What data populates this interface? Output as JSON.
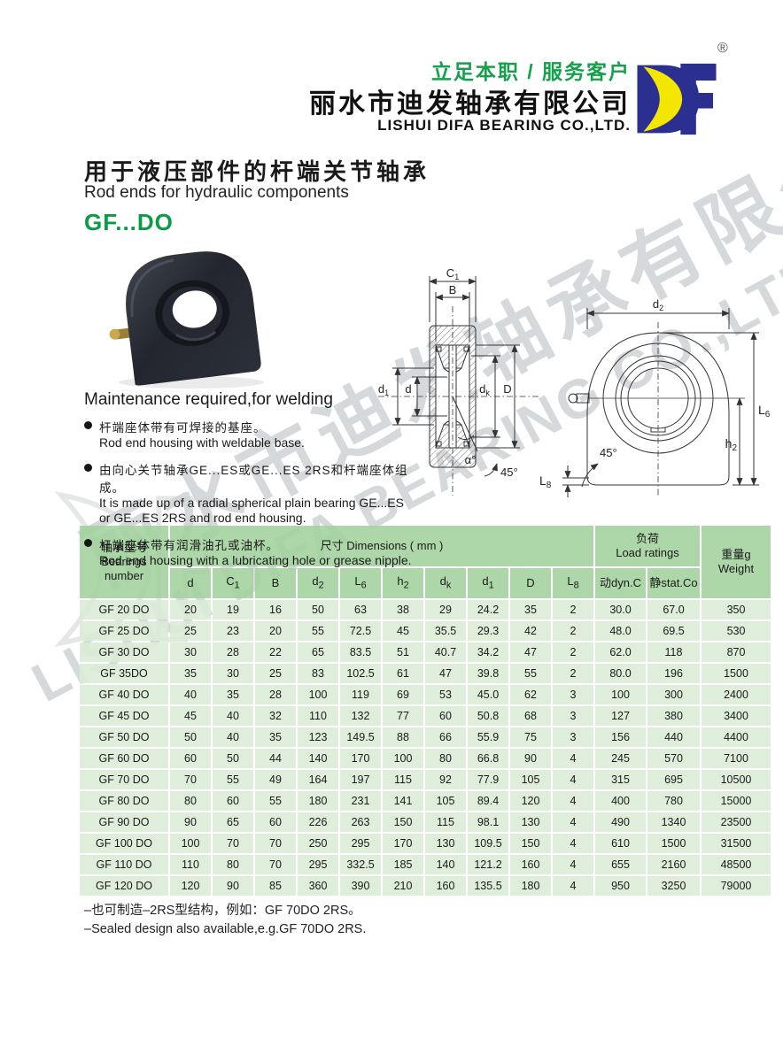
{
  "header": {
    "slogan": "立足本职 / 服务客户",
    "company_cn": "丽水市迪发轴承有限公司",
    "company_en": "LISHUI DIFA BEARING CO.,LTD.",
    "registered": "®",
    "logo_icon": "df-crescent-logo"
  },
  "title": {
    "cn": "用于液压部件的杆端关节轴承",
    "en": "Rod ends for hydraulic components",
    "model": "GF...DO"
  },
  "maintenance": {
    "heading": "Maintenance required,for welding",
    "bullets": [
      {
        "cn": "杆端座体带有可焊接的基座。",
        "en": "Rod end housing with weldable base."
      },
      {
        "cn": "由向心关节轴承GE...ES或GE...ES 2RS和杆端座体组成。",
        "en": "It is made up of a radial spherical plain bearing GE...ES or GE...ES 2RS and rod end housing."
      },
      {
        "cn": "杆端座体带有润滑油孔或油杯。",
        "en": "Rod end housing with a lubricating hole or grease nipple."
      }
    ]
  },
  "drawings": {
    "labels": {
      "c1": {
        "t": "C",
        "s": "1"
      },
      "b": {
        "t": "B",
        "s": ""
      },
      "d1": {
        "t": "d",
        "s": "1"
      },
      "d": {
        "t": "d",
        "s": ""
      },
      "dk": {
        "t": "d",
        "s": "k"
      },
      "D": {
        "t": "D",
        "s": ""
      },
      "alpha": {
        "t": "α°",
        "s": ""
      },
      "angle45_section": {
        "t": "45°",
        "s": ""
      },
      "d2": {
        "t": "d",
        "s": "2"
      },
      "l6": {
        "t": "L",
        "s": "6"
      },
      "h2": {
        "t": "h",
        "s": "2"
      },
      "angle45_front": {
        "t": "45°",
        "s": ""
      },
      "l8": {
        "t": "L",
        "s": "8"
      }
    }
  },
  "table": {
    "header": {
      "bearings_cn": "轴承型号",
      "bearings_en1": "Bearings",
      "bearings_en2": "number",
      "dimensions": "尺寸 Dimensions ( mm )",
      "load_cn": "负荷",
      "load_en": "Load ratings",
      "weight_line1": "重量g",
      "weight_line2": "Weight"
    },
    "sub_columns": [
      {
        "t": "d",
        "s": ""
      },
      {
        "t": "C",
        "s": "1"
      },
      {
        "t": "B",
        "s": ""
      },
      {
        "t": "d",
        "s": "2"
      },
      {
        "t": "L",
        "s": "6"
      },
      {
        "t": "h",
        "s": "2"
      },
      {
        "t": "d",
        "s": "k"
      },
      {
        "t": "d",
        "s": "1"
      },
      {
        "t": "D",
        "s": ""
      },
      {
        "t": "L",
        "s": "8"
      },
      {
        "t": "动dyn.C",
        "s": ""
      },
      {
        "t": "静stat.Co",
        "s": ""
      }
    ],
    "rows": [
      {
        "model": "GF 20 DO",
        "values": [
          "20",
          "19",
          "16",
          "50",
          "63",
          "38",
          "29",
          "24.2",
          "35",
          "2",
          "30.0",
          "67.0",
          "350"
        ]
      },
      {
        "model": "GF 25 DO",
        "values": [
          "25",
          "23",
          "20",
          "55",
          "72.5",
          "45",
          "35.5",
          "29.3",
          "42",
          "2",
          "48.0",
          "69.5",
          "530"
        ]
      },
      {
        "model": "GF 30 DO",
        "values": [
          "30",
          "28",
          "22",
          "65",
          "83.5",
          "51",
          "40.7",
          "34.2",
          "47",
          "2",
          "62.0",
          "118",
          "870"
        ]
      },
      {
        "model": "GF 35DO",
        "values": [
          "35",
          "30",
          "25",
          "83",
          "102.5",
          "61",
          "47",
          "39.8",
          "55",
          "2",
          "80.0",
          "196",
          "1500"
        ]
      },
      {
        "model": "GF 40 DO",
        "values": [
          "40",
          "35",
          "28",
          "100",
          "119",
          "69",
          "53",
          "45.0",
          "62",
          "3",
          "100",
          "300",
          "2400"
        ]
      },
      {
        "model": "GF 45 DO",
        "values": [
          "45",
          "40",
          "32",
          "110",
          "132",
          "77",
          "60",
          "50.8",
          "68",
          "3",
          "127",
          "380",
          "3400"
        ]
      },
      {
        "model": "GF 50 DO",
        "values": [
          "50",
          "40",
          "35",
          "123",
          "149.5",
          "88",
          "66",
          "55.9",
          "75",
          "3",
          "156",
          "440",
          "4400"
        ]
      },
      {
        "model": "GF 60 DO",
        "values": [
          "60",
          "50",
          "44",
          "140",
          "170",
          "100",
          "80",
          "66.8",
          "90",
          "4",
          "245",
          "570",
          "7100"
        ]
      },
      {
        "model": "GF 70 DO",
        "values": [
          "70",
          "55",
          "49",
          "164",
          "197",
          "115",
          "92",
          "77.9",
          "105",
          "4",
          "315",
          "695",
          "10500"
        ]
      },
      {
        "model": "GF 80 DO",
        "values": [
          "80",
          "60",
          "55",
          "180",
          "231",
          "141",
          "105",
          "89.4",
          "120",
          "4",
          "400",
          "780",
          "15000"
        ]
      },
      {
        "model": "GF 90 DO",
        "values": [
          "90",
          "65",
          "60",
          "226",
          "263",
          "150",
          "115",
          "98.1",
          "130",
          "4",
          "490",
          "1340",
          "23500"
        ]
      },
      {
        "model": "GF 100 DO",
        "values": [
          "100",
          "70",
          "70",
          "250",
          "295",
          "170",
          "130",
          "109.5",
          "150",
          "4",
          "610",
          "1500",
          "31500"
        ]
      },
      {
        "model": "GF 110 DO",
        "values": [
          "110",
          "80",
          "70",
          "295",
          "332.5",
          "185",
          "140",
          "121.2",
          "160",
          "4",
          "655",
          "2160",
          "48500"
        ]
      },
      {
        "model": "GF 120 DO",
        "values": [
          "120",
          "90",
          "85",
          "360",
          "390",
          "210",
          "160",
          "135.5",
          "180",
          "4",
          "950",
          "3250",
          "79000"
        ]
      }
    ]
  },
  "notes": [
    "–也可制造–2RS型结构，例如：GF 70DO 2RS。",
    "–Sealed design also available,e.g.GF 70DO 2RS."
  ],
  "watermark": {
    "cn": "丽水市迪发轴承有限公司",
    "en": "LISHUI DIFA BEARING CO.,LTD."
  },
  "colors": {
    "accent_green": "#0a9b47",
    "slogan_green": "#17a04c",
    "table_header_green": "#a2d29d",
    "table_body_green": "#d9ecd6",
    "logo_navy": "#2b2f8f",
    "logo_yellow": "#f3e600",
    "watermark_gray": "#d6d9db"
  }
}
